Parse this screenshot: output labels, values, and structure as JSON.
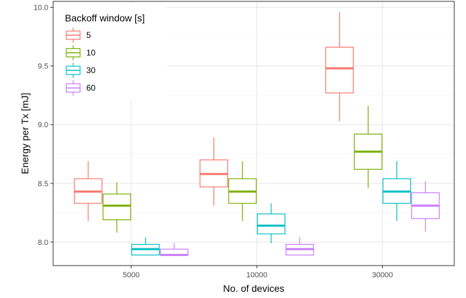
{
  "chart_data": {
    "type": "boxplot",
    "title": "",
    "xlabel": "No. of devices",
    "ylabel": "Energy per Tx [mJ]",
    "ylim": [
      7.8,
      10.05
    ],
    "yticks": [
      8.0,
      8.5,
      9.0,
      9.5,
      10.0
    ],
    "ytick_labels": [
      "8.0",
      "8.5",
      "9.0",
      "9.5",
      "10.0"
    ],
    "categories": [
      "5000",
      "10000",
      "30000"
    ],
    "grid": true,
    "legend": {
      "title": "Backoff window [s]",
      "position": "top-left"
    },
    "series": [
      {
        "name": "5",
        "color": "#F8766D",
        "boxes": [
          {
            "min": 8.18,
            "q1": 8.33,
            "median": 8.43,
            "q3": 8.54,
            "max": 8.69
          },
          {
            "min": 8.31,
            "q1": 8.47,
            "median": 8.58,
            "q3": 8.7,
            "max": 8.89
          },
          {
            "min": 9.03,
            "q1": 9.27,
            "median": 9.48,
            "q3": 9.66,
            "max": 9.96
          }
        ]
      },
      {
        "name": "10",
        "color": "#7CAE00",
        "boxes": [
          {
            "min": 8.08,
            "q1": 8.19,
            "median": 8.31,
            "q3": 8.41,
            "max": 8.51
          },
          {
            "min": 8.18,
            "q1": 8.33,
            "median": 8.43,
            "q3": 8.54,
            "max": 8.69
          },
          {
            "min": 8.46,
            "q1": 8.62,
            "median": 8.77,
            "q3": 8.92,
            "max": 9.16
          }
        ]
      },
      {
        "name": "30",
        "color": "#00BFC4",
        "boxes": [
          {
            "min": 7.89,
            "q1": 7.89,
            "median": 7.94,
            "q3": 7.98,
            "max": 8.04
          },
          {
            "min": 7.99,
            "q1": 8.07,
            "median": 8.14,
            "q3": 8.24,
            "max": 8.33
          },
          {
            "min": 8.18,
            "q1": 8.33,
            "median": 8.43,
            "q3": 8.54,
            "max": 8.69
          }
        ]
      },
      {
        "name": "60",
        "color": "#C77CFF",
        "boxes": [
          {
            "min": 7.89,
            "q1": 7.89,
            "median": 7.89,
            "q3": 7.94,
            "max": 7.99
          },
          {
            "min": 7.89,
            "q1": 7.89,
            "median": 7.94,
            "q3": 7.98,
            "max": 8.04
          },
          {
            "min": 8.09,
            "q1": 8.2,
            "median": 8.31,
            "q3": 8.42,
            "max": 8.52
          }
        ]
      }
    ]
  }
}
